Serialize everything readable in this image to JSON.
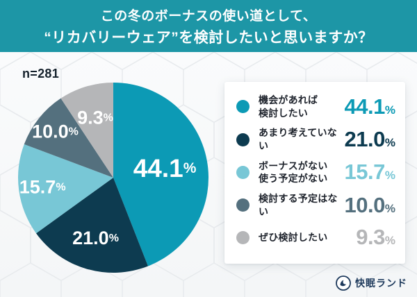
{
  "header": {
    "title_line1": "この冬のボーナスの使い道として、",
    "title_line2": "“リカバリーウェア”を検討したいと思いますか？"
  },
  "chart_data": {
    "type": "pie",
    "title": "この冬のボーナスの使い道として、“リカバリーウェア”を検討したいと思いますか？",
    "sample_size": "n=281",
    "categories": [
      "機会があれば検討したい",
      "あまり考えていない",
      "ボーナスがない使う予定がない",
      "検討する予定はない",
      "ぜひ検討したい"
    ],
    "values": [
      44.1,
      21.0,
      15.7,
      10.0,
      9.3
    ],
    "value_labels": [
      "44.1",
      "21.0",
      "15.7",
      "10.0",
      "9.3"
    ],
    "colors": [
      "#0c9ab5",
      "#0d3b50",
      "#78c7d6",
      "#54707e",
      "#b5b6b8"
    ],
    "start_angle_deg": -90,
    "direction": "clockwise",
    "legend_position": "right",
    "percent_sign": "%"
  },
  "legend": {
    "items": [
      {
        "label": "機会があれば\n検討したい",
        "value": "44.1"
      },
      {
        "label": "あまり考えていない",
        "value": "21.0"
      },
      {
        "label": "ボーナスがない\n使う予定がない",
        "value": "15.7"
      },
      {
        "label": "検討する予定はない",
        "value": "10.0"
      },
      {
        "label": "ぜひ検討したい",
        "value": "9.3"
      }
    ],
    "percent_sign": "%"
  },
  "footer": {
    "brand": "快眠ランド"
  },
  "colors": {
    "banner": "#1d96a6",
    "text_dark": "#14202b",
    "brand_navy": "#1e3a5c"
  }
}
